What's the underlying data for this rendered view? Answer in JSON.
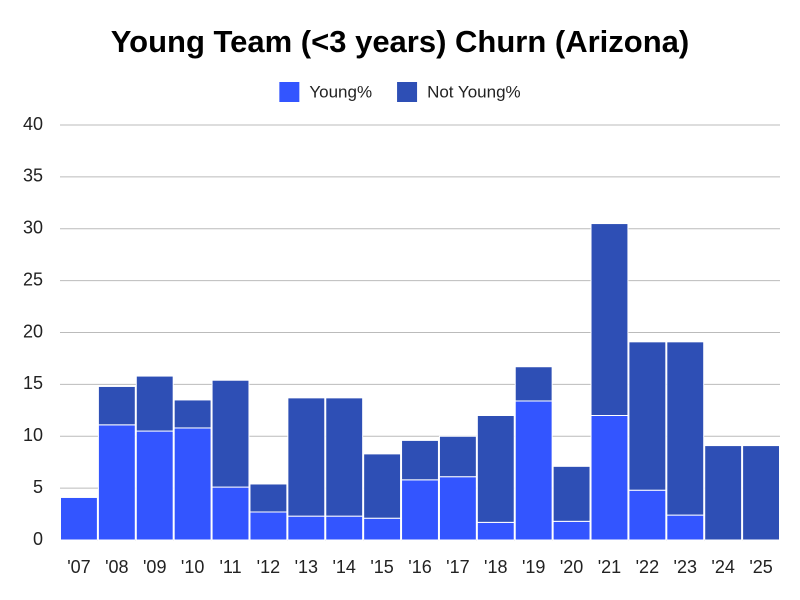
{
  "chart_data": {
    "type": "stacked_bar",
    "title": "Young Team (<3 years) Churn (Arizona)",
    "categories": [
      "'07",
      "'08",
      "'09",
      "'10",
      "'11",
      "'12",
      "'13",
      "'14",
      "'15",
      "'16",
      "'17",
      "'18",
      "'19",
      "'20",
      "'21",
      "'22",
      "'23",
      "'24",
      "'25"
    ],
    "series": [
      {
        "name": "Young%",
        "color": "#3355ff",
        "values": [
          4.1,
          11.1,
          10.5,
          10.8,
          5.1,
          2.7,
          2.3,
          2.3,
          2.1,
          5.8,
          6.1,
          1.7,
          13.4,
          1.8,
          12.0,
          4.8,
          2.4,
          0,
          0
        ]
      },
      {
        "name": "Not Young%",
        "color": "#2e4fb5",
        "values": [
          0,
          3.7,
          5.3,
          2.7,
          10.3,
          2.7,
          11.4,
          11.4,
          6.2,
          3.8,
          3.9,
          10.3,
          3.3,
          5.3,
          18.5,
          14.3,
          16.7,
          9.1,
          9.1
        ]
      }
    ],
    "ylim": [
      0,
      40
    ],
    "yticks": [
      0,
      5,
      10,
      15,
      20,
      25,
      30,
      35,
      40
    ],
    "grid": true,
    "legend": "top"
  }
}
